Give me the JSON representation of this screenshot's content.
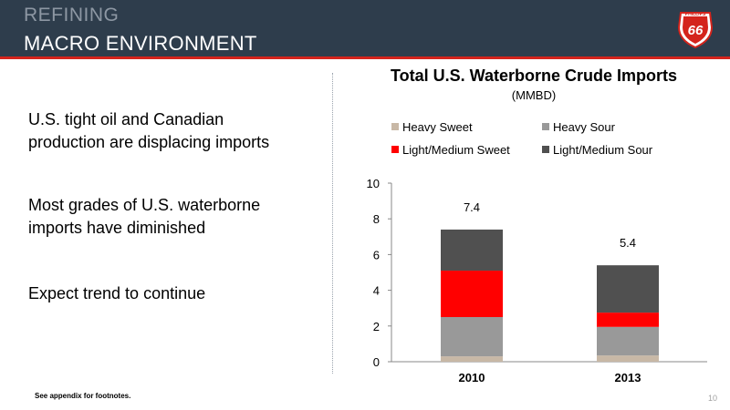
{
  "header": {
    "line1": "REFINING",
    "line2": "MACRO ENVIRONMENT",
    "logo_text_top": "PHILLIPS",
    "logo_text_main": "66"
  },
  "bullets": [
    [
      "U.S. tight oil and Canadian",
      "production are displacing imports"
    ],
    [
      "Most grades of U.S. waterborne",
      "imports have diminished"
    ],
    [
      "Expect trend to continue"
    ]
  ],
  "footnote": "See appendix for footnotes.",
  "page_number": "10",
  "colors": {
    "header_bg": "#2e3d4c",
    "accent_red": "#d4241c",
    "heavy_sweet": "#c8b8a6",
    "heavy_sour": "#999999",
    "light_medium_sweet": "#ff0000",
    "light_medium_sour": "#505050"
  },
  "chart_data": {
    "type": "bar",
    "stacked": true,
    "title": "Total U.S. Waterborne Crude Imports",
    "subtitle": "(MMBD)",
    "categories": [
      "2010",
      "2013"
    ],
    "series": [
      {
        "name": "Heavy Sweet",
        "color": "#c8b8a6",
        "values": [
          0.3,
          0.35
        ]
      },
      {
        "name": "Heavy Sour",
        "color": "#999999",
        "values": [
          2.2,
          1.6
        ]
      },
      {
        "name": "Light/Medium Sweet",
        "color": "#ff0000",
        "values": [
          2.6,
          0.8
        ]
      },
      {
        "name": "Light/Medium Sour",
        "color": "#505050",
        "values": [
          2.3,
          2.65
        ]
      }
    ],
    "totals": [
      "7.4",
      "5.4"
    ],
    "ylim": [
      0,
      10
    ],
    "yticks": [
      "0",
      "2",
      "4",
      "6",
      "8",
      "10"
    ],
    "legend_position": "top",
    "grid": false
  }
}
